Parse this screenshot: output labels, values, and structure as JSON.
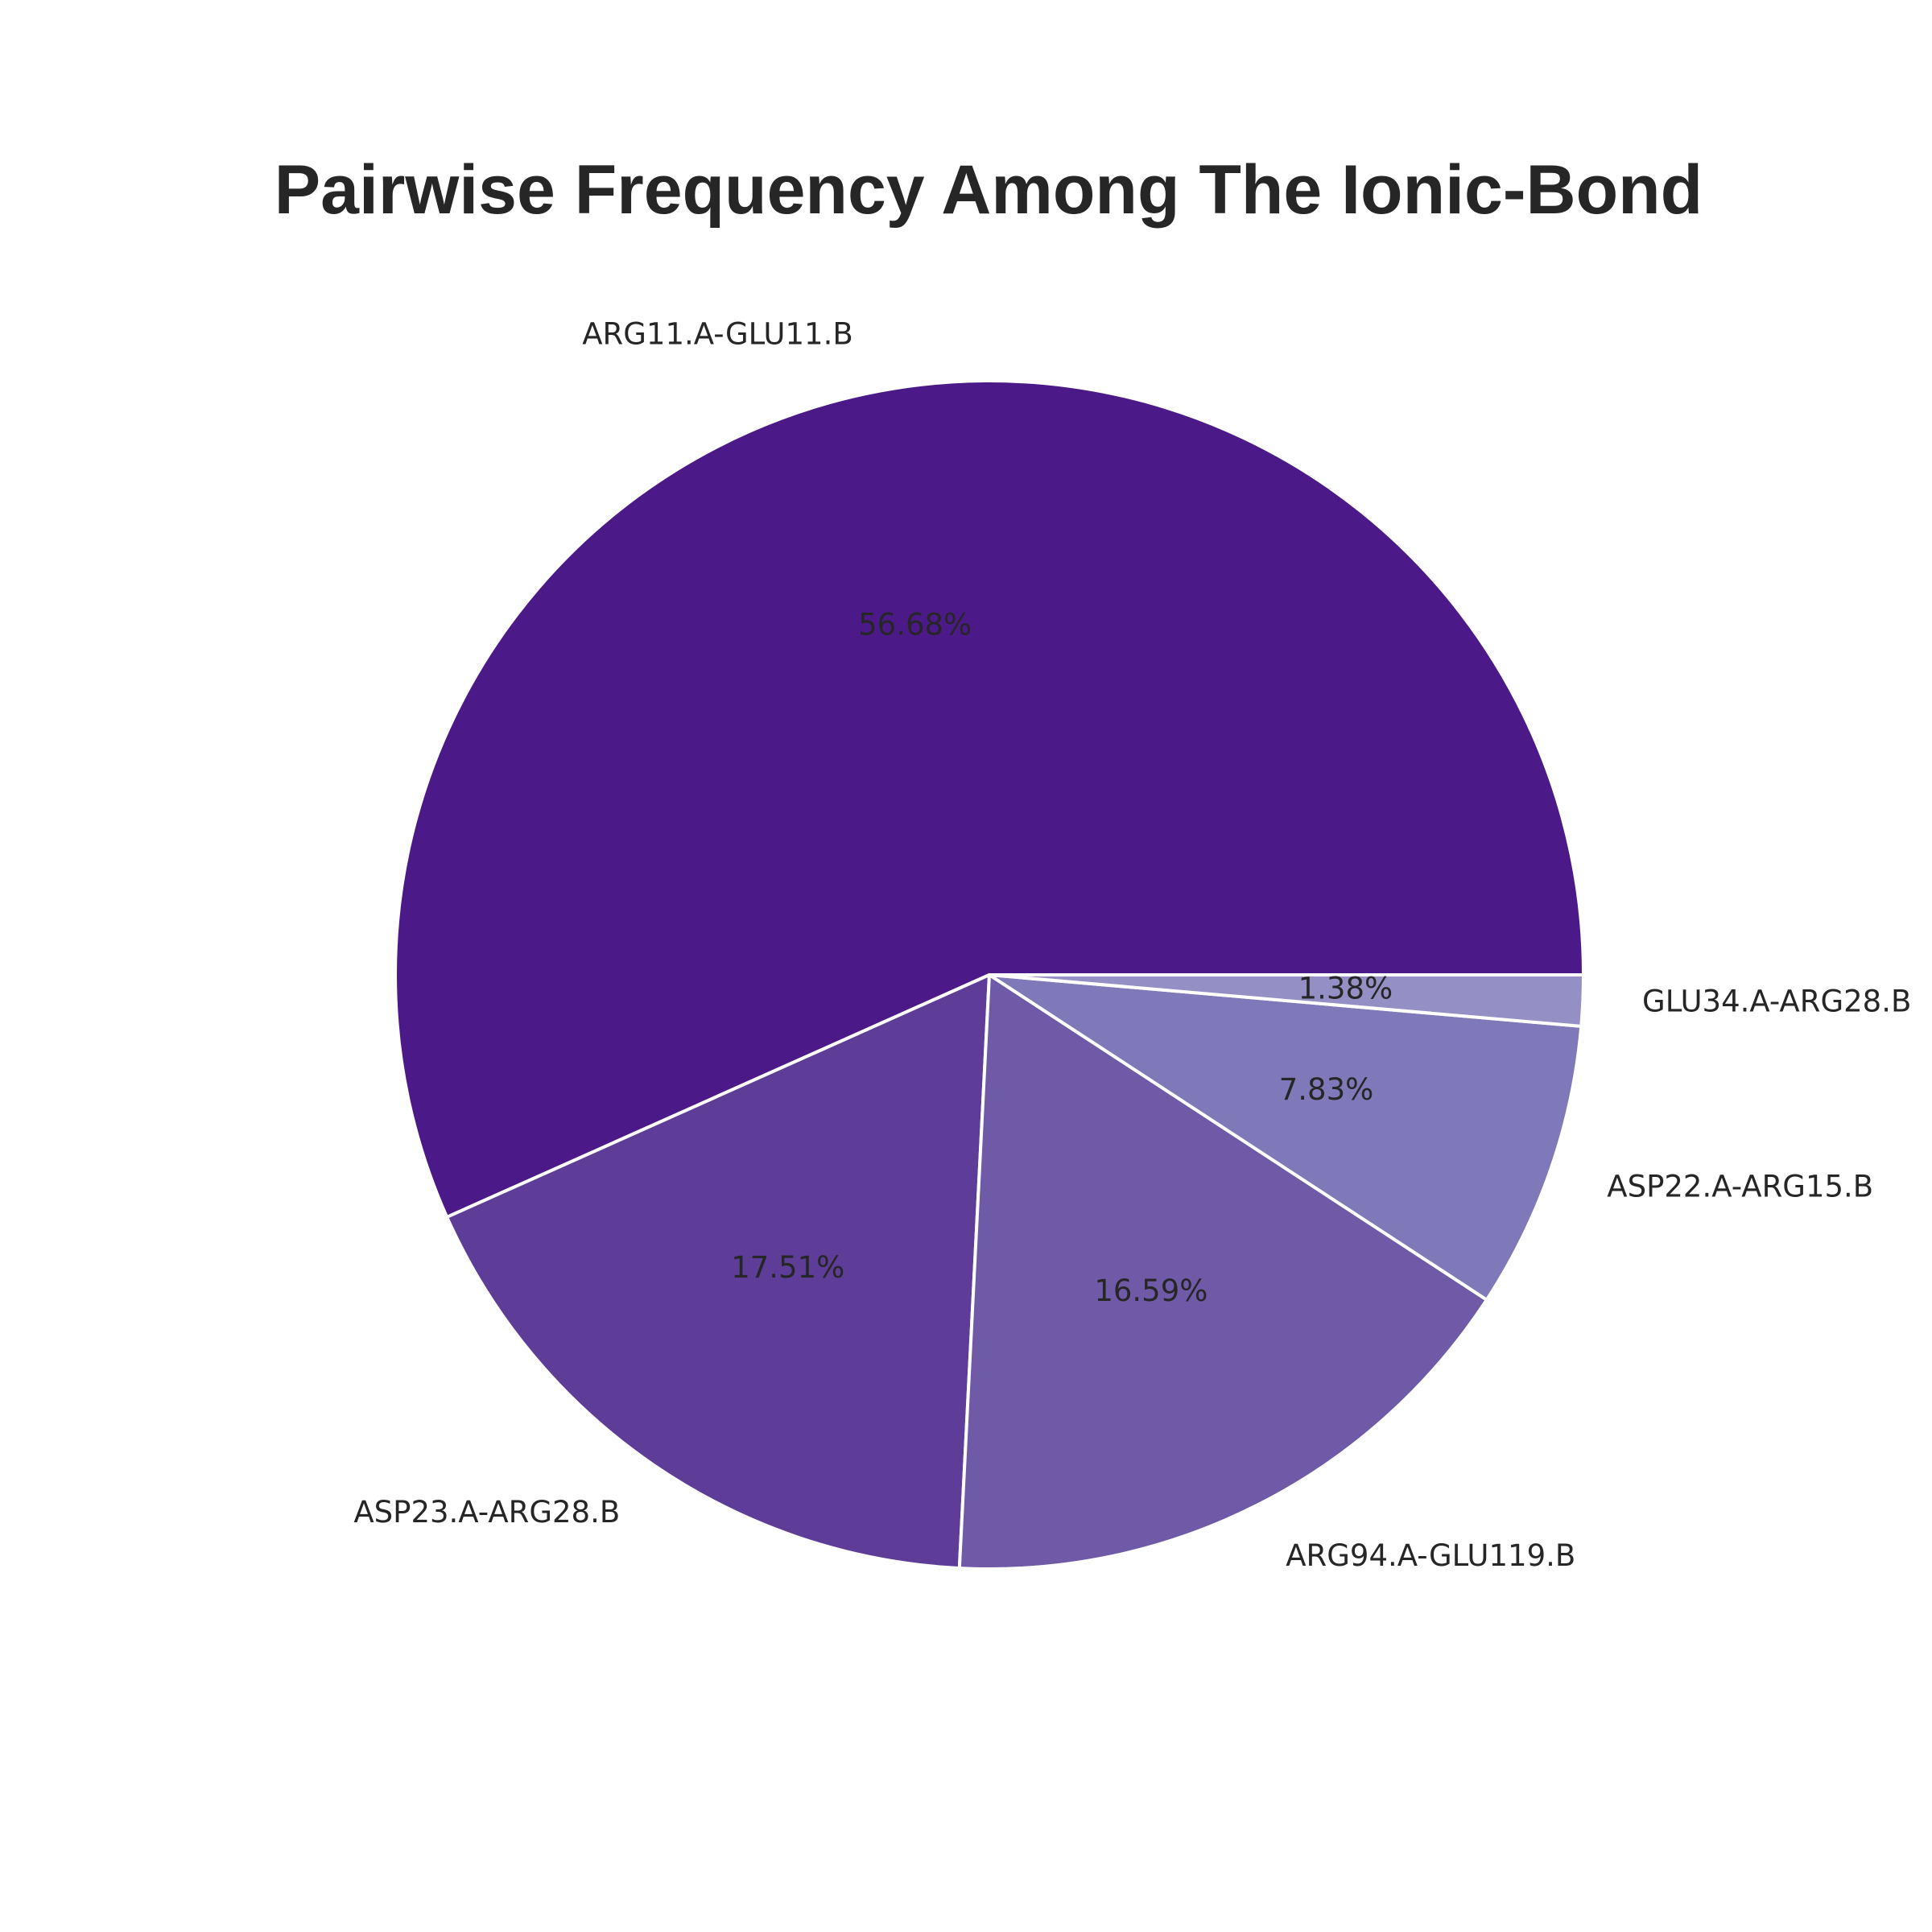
{
  "chart_data": {
    "type": "pie",
    "title": "Pairwise Frequency Among The Ionic-Bond",
    "slices": [
      {
        "label": "ARG11.A-GLU11.B",
        "value": 56.68,
        "value_label": "56.68%",
        "color": "#4c1a88"
      },
      {
        "label": "ASP23.A-ARG28.B",
        "value": 17.51,
        "value_label": "17.51%",
        "color": "#5e3d99"
      },
      {
        "label": "ARG94.A-GLU119.B",
        "value": 16.59,
        "value_label": "16.59%",
        "color": "#6f5aa8"
      },
      {
        "label": "ASP22.A-ARG15.B",
        "value": 7.83,
        "value_label": "7.83%",
        "color": "#7f79b9"
      },
      {
        "label": "GLU34.A-ARG28.B",
        "value": 1.38,
        "value_label": "1.38%",
        "color": "#9490c5"
      }
    ],
    "start_angle": "0 degrees (3 o'clock)",
    "direction": "counterclockwise",
    "legend": "none"
  }
}
